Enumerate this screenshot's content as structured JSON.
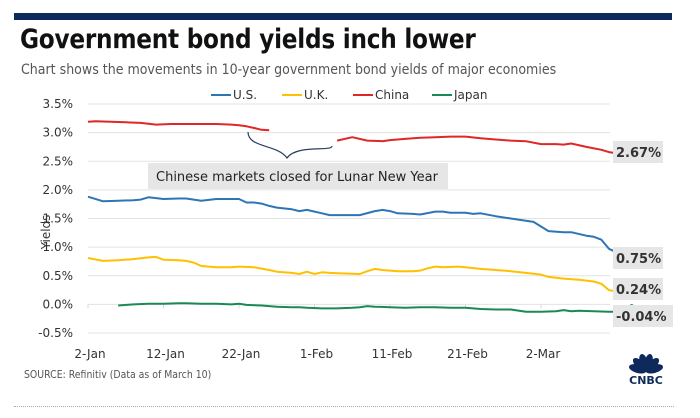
{
  "header": {
    "title": "Government bond yields inch lower",
    "subtitle": "Chart shows the movements in 10-year government bond yields of major economies"
  },
  "footer": {
    "source": "SOURCE: Refinitiv (Data as of March 10)",
    "logo_text": "CNBC",
    "logo_icon": "nbc-peacock-icon"
  },
  "colors": {
    "topbar": "#0e2a5c",
    "us": "#2e75b6",
    "uk": "#ffc000",
    "china": "#e02626",
    "japan": "#1a8a55",
    "brace": "#2c3e63",
    "label_bg": "#e6e6e6",
    "logo": "#0e2a5c"
  },
  "chart_data": {
    "type": "line",
    "title": "Government bond yields inch lower",
    "subtitle": "Chart shows the movements in 10-year government bond yields of major economies",
    "xlabel": "",
    "ylabel": "Yields",
    "ylim": [
      -0.5,
      3.5
    ],
    "yticks": [
      -0.5,
      0.0,
      0.5,
      1.0,
      1.5,
      2.0,
      2.5,
      3.0,
      3.5
    ],
    "ytick_labels": [
      "-0.5%",
      "0.0%",
      "0.5%",
      "1.0%",
      "1.5%",
      "2.0%",
      "2.5%",
      "3.0%",
      "3.5%"
    ],
    "xlim_days": [
      0,
      68
    ],
    "xticks_days": [
      0,
      10,
      20,
      30,
      40,
      50,
      60
    ],
    "xtick_labels": [
      "2-Jan",
      "12-Jan",
      "22-Jan",
      "1-Feb",
      "11-Feb",
      "21-Feb",
      "2-Mar"
    ],
    "grid": true,
    "legend_position": "top-center",
    "x_unit": "days since 2-Jan",
    "series": [
      {
        "name": "U.S.",
        "color_key": "us",
        "end_label": "0.75%",
        "points": [
          [
            0,
            1.88
          ],
          [
            2,
            1.8
          ],
          [
            4,
            1.81
          ],
          [
            6,
            1.82
          ],
          [
            7,
            1.83
          ],
          [
            8,
            1.87
          ],
          [
            10,
            1.84
          ],
          [
            12,
            1.85
          ],
          [
            13,
            1.85
          ],
          [
            15,
            1.81
          ],
          [
            17,
            1.84
          ],
          [
            19,
            1.84
          ],
          [
            20,
            1.84
          ],
          [
            21,
            1.78
          ],
          [
            22,
            1.78
          ],
          [
            23,
            1.76
          ],
          [
            24,
            1.72
          ],
          [
            25,
            1.69
          ],
          [
            27,
            1.66
          ],
          [
            28,
            1.63
          ],
          [
            29,
            1.65
          ],
          [
            31,
            1.59
          ],
          [
            32,
            1.56
          ],
          [
            34,
            1.56
          ],
          [
            36,
            1.56
          ],
          [
            38,
            1.63
          ],
          [
            39,
            1.65
          ],
          [
            40,
            1.63
          ],
          [
            41,
            1.59
          ],
          [
            43,
            1.58
          ],
          [
            44,
            1.57
          ],
          [
            46,
            1.62
          ],
          [
            47,
            1.62
          ],
          [
            48,
            1.6
          ],
          [
            50,
            1.6
          ],
          [
            51,
            1.58
          ],
          [
            52,
            1.59
          ],
          [
            54,
            1.54
          ],
          [
            56,
            1.5
          ],
          [
            58,
            1.46
          ],
          [
            59,
            1.44
          ],
          [
            61,
            1.28
          ],
          [
            63,
            1.26
          ],
          [
            64,
            1.26
          ],
          [
            66,
            1.2
          ],
          [
            67,
            1.18
          ],
          [
            68,
            1.13
          ],
          [
            69,
            0.97
          ],
          [
            71,
            0.85
          ],
          [
            72,
            0.75
          ]
        ]
      },
      {
        "name": "U.K.",
        "color_key": "uk",
        "end_label": "0.24%",
        "points": [
          [
            0,
            0.81
          ],
          [
            2,
            0.76
          ],
          [
            4,
            0.77
          ],
          [
            6,
            0.79
          ],
          [
            8,
            0.82
          ],
          [
            9,
            0.83
          ],
          [
            10,
            0.78
          ],
          [
            12,
            0.77
          ],
          [
            13,
            0.76
          ],
          [
            14,
            0.73
          ],
          [
            15,
            0.67
          ],
          [
            17,
            0.65
          ],
          [
            19,
            0.65
          ],
          [
            20,
            0.66
          ],
          [
            22,
            0.65
          ],
          [
            24,
            0.6
          ],
          [
            25,
            0.57
          ],
          [
            27,
            0.55
          ],
          [
            28,
            0.53
          ],
          [
            29,
            0.57
          ],
          [
            30,
            0.53
          ],
          [
            31,
            0.56
          ],
          [
            32,
            0.55
          ],
          [
            34,
            0.54
          ],
          [
            36,
            0.53
          ],
          [
            37,
            0.58
          ],
          [
            38,
            0.62
          ],
          [
            39,
            0.6
          ],
          [
            41,
            0.58
          ],
          [
            43,
            0.58
          ],
          [
            44,
            0.59
          ],
          [
            45,
            0.63
          ],
          [
            46,
            0.66
          ],
          [
            47,
            0.65
          ],
          [
            49,
            0.66
          ],
          [
            50,
            0.65
          ],
          [
            52,
            0.62
          ],
          [
            54,
            0.6
          ],
          [
            56,
            0.58
          ],
          [
            58,
            0.55
          ],
          [
            60,
            0.52
          ],
          [
            61,
            0.48
          ],
          [
            63,
            0.45
          ],
          [
            65,
            0.43
          ],
          [
            67,
            0.4
          ],
          [
            68,
            0.36
          ],
          [
            69,
            0.25
          ],
          [
            71,
            0.2
          ],
          [
            72,
            0.24
          ]
        ]
      },
      {
        "name": "China",
        "color_key": "china",
        "end_label": "2.67%",
        "segments": [
          [
            [
              0,
              3.19
            ],
            [
              1,
              3.2
            ],
            [
              3,
              3.19
            ],
            [
              5,
              3.18
            ],
            [
              7,
              3.17
            ],
            [
              9,
              3.14
            ],
            [
              11,
              3.15
            ],
            [
              13,
              3.15
            ],
            [
              15,
              3.15
            ],
            [
              17,
              3.15
            ],
            [
              19,
              3.14
            ],
            [
              20,
              3.13
            ],
            [
              21,
              3.11
            ],
            [
              22,
              3.08
            ],
            [
              23,
              3.05
            ],
            [
              24,
              3.04
            ]
          ],
          [
            [
              33,
              2.86
            ],
            [
              35,
              2.92
            ],
            [
              37,
              2.86
            ],
            [
              39,
              2.85
            ],
            [
              40,
              2.87
            ],
            [
              42,
              2.89
            ],
            [
              44,
              2.91
            ],
            [
              46,
              2.92
            ],
            [
              48,
              2.93
            ],
            [
              50,
              2.93
            ],
            [
              52,
              2.9
            ],
            [
              54,
              2.88
            ],
            [
              56,
              2.86
            ],
            [
              58,
              2.85
            ],
            [
              60,
              2.8
            ],
            [
              62,
              2.8
            ],
            [
              63,
              2.79
            ],
            [
              64,
              2.81
            ],
            [
              66,
              2.75
            ],
            [
              68,
              2.7
            ],
            [
              69,
              2.66
            ],
            [
              71,
              2.62
            ],
            [
              72,
              2.67
            ]
          ]
        ]
      },
      {
        "name": "Japan",
        "color_key": "japan",
        "end_label": "-0.04%",
        "points": [
          [
            4,
            -0.02
          ],
          [
            6,
            0.0
          ],
          [
            8,
            0.01
          ],
          [
            10,
            0.01
          ],
          [
            12,
            0.02
          ],
          [
            13,
            0.02
          ],
          [
            15,
            0.01
          ],
          [
            17,
            0.01
          ],
          [
            19,
            0.0
          ],
          [
            20,
            0.01
          ],
          [
            21,
            -0.01
          ],
          [
            23,
            -0.02
          ],
          [
            25,
            -0.04
          ],
          [
            27,
            -0.05
          ],
          [
            28,
            -0.05
          ],
          [
            29,
            -0.06
          ],
          [
            31,
            -0.07
          ],
          [
            33,
            -0.07
          ],
          [
            35,
            -0.06
          ],
          [
            36,
            -0.05
          ],
          [
            37,
            -0.03
          ],
          [
            38,
            -0.04
          ],
          [
            40,
            -0.05
          ],
          [
            42,
            -0.06
          ],
          [
            44,
            -0.05
          ],
          [
            46,
            -0.05
          ],
          [
            48,
            -0.06
          ],
          [
            50,
            -0.06
          ],
          [
            52,
            -0.08
          ],
          [
            54,
            -0.09
          ],
          [
            56,
            -0.09
          ],
          [
            58,
            -0.13
          ],
          [
            60,
            -0.13
          ],
          [
            62,
            -0.12
          ],
          [
            63,
            -0.1
          ],
          [
            64,
            -0.12
          ],
          [
            65,
            -0.11
          ],
          [
            67,
            -0.12
          ],
          [
            69,
            -0.13
          ],
          [
            71,
            -0.13
          ],
          [
            72,
            -0.04
          ]
        ]
      }
    ],
    "annotations": [
      {
        "text": "Chinese markets closed for Lunar New Year",
        "type": "brace",
        "from_day": 24,
        "to_day": 33
      }
    ]
  }
}
